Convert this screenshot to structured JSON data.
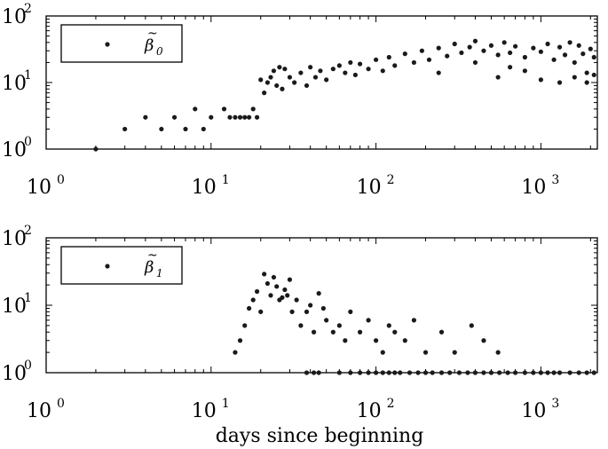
{
  "chart_data": [
    {
      "type": "scatter",
      "xscale": "log",
      "yscale": "log",
      "xlim": [
        1,
        2200
      ],
      "ylim": [
        1,
        100
      ],
      "xlabel": "",
      "x_ticks": [
        {
          "base": "10",
          "exp": "0"
        },
        {
          "base": "10",
          "exp": "1"
        },
        {
          "base": "10",
          "exp": "2"
        },
        {
          "base": "10",
          "exp": "3"
        }
      ],
      "y_ticks": [
        {
          "base": "10",
          "exp": "0"
        },
        {
          "base": "10",
          "exp": "1"
        },
        {
          "base": "10",
          "exp": "2"
        }
      ],
      "legend": {
        "position": "top-left",
        "symbol": "β",
        "subscript": "0"
      },
      "marker_color": "#1a1a1a",
      "series": [
        {
          "name": "β̃0",
          "points": [
            [
              2,
              1
            ],
            [
              3,
              2
            ],
            [
              4,
              3
            ],
            [
              5,
              2
            ],
            [
              6,
              3
            ],
            [
              7,
              2
            ],
            [
              8,
              4
            ],
            [
              9,
              2
            ],
            [
              10,
              3
            ],
            [
              12,
              4
            ],
            [
              13,
              3
            ],
            [
              14,
              3
            ],
            [
              15,
              3
            ],
            [
              16,
              3
            ],
            [
              17,
              3
            ],
            [
              18,
              4
            ],
            [
              19,
              3
            ],
            [
              20,
              11
            ],
            [
              21,
              7
            ],
            [
              22,
              10
            ],
            [
              23,
              12
            ],
            [
              24,
              15
            ],
            [
              25,
              9
            ],
            [
              26,
              17
            ],
            [
              27,
              8
            ],
            [
              28,
              16
            ],
            [
              30,
              12
            ],
            [
              32,
              10
            ],
            [
              35,
              14
            ],
            [
              38,
              9
            ],
            [
              40,
              17
            ],
            [
              43,
              12
            ],
            [
              46,
              15
            ],
            [
              50,
              11
            ],
            [
              55,
              16
            ],
            [
              60,
              18
            ],
            [
              65,
              14
            ],
            [
              70,
              20
            ],
            [
              75,
              13
            ],
            [
              80,
              19
            ],
            [
              90,
              16
            ],
            [
              100,
              22
            ],
            [
              110,
              15
            ],
            [
              120,
              24
            ],
            [
              130,
              18
            ],
            [
              150,
              27
            ],
            [
              170,
              20
            ],
            [
              190,
              30
            ],
            [
              210,
              22
            ],
            [
              240,
              33
            ],
            [
              270,
              25
            ],
            [
              300,
              38
            ],
            [
              330,
              28
            ],
            [
              370,
              34
            ],
            [
              400,
              42
            ],
            [
              450,
              30
            ],
            [
              500,
              36
            ],
            [
              550,
              26
            ],
            [
              600,
              40
            ],
            [
              650,
              28
            ],
            [
              700,
              35
            ],
            [
              800,
              24
            ],
            [
              900,
              33
            ],
            [
              1000,
              29
            ],
            [
              1100,
              38
            ],
            [
              1200,
              22
            ],
            [
              1300,
              34
            ],
            [
              1400,
              26
            ],
            [
              1500,
              40
            ],
            [
              1600,
              20
            ],
            [
              1700,
              36
            ],
            [
              1800,
              27
            ],
            [
              1900,
              14
            ],
            [
              2000,
              32
            ],
            [
              2100,
              24
            ],
            [
              550,
              12
            ],
            [
              800,
              15
            ],
            [
              1000,
              11
            ],
            [
              1300,
              10
            ],
            [
              1600,
              12
            ],
            [
              1900,
              10
            ],
            [
              2100,
              13
            ],
            [
              240,
              14
            ],
            [
              400,
              20
            ],
            [
              650,
              17
            ]
          ]
        }
      ]
    },
    {
      "type": "scatter",
      "xscale": "log",
      "yscale": "log",
      "xlim": [
        1,
        2200
      ],
      "ylim": [
        1,
        100
      ],
      "xlabel": "days since beginning",
      "x_ticks": [
        {
          "base": "10",
          "exp": "0"
        },
        {
          "base": "10",
          "exp": "1"
        },
        {
          "base": "10",
          "exp": "2"
        },
        {
          "base": "10",
          "exp": "3"
        }
      ],
      "y_ticks": [
        {
          "base": "10",
          "exp": "0"
        },
        {
          "base": "10",
          "exp": "1"
        },
        {
          "base": "10",
          "exp": "2"
        }
      ],
      "legend": {
        "position": "top-left",
        "symbol": "β",
        "subscript": "1"
      },
      "marker_color": "#1a1a1a",
      "series": [
        {
          "name": "β̃1",
          "points": [
            [
              14,
              2
            ],
            [
              15,
              3
            ],
            [
              16,
              5
            ],
            [
              17,
              9
            ],
            [
              18,
              12
            ],
            [
              19,
              16
            ],
            [
              20,
              8
            ],
            [
              21,
              29
            ],
            [
              22,
              21
            ],
            [
              23,
              14
            ],
            [
              24,
              26
            ],
            [
              25,
              19
            ],
            [
              26,
              12
            ],
            [
              27,
              13
            ],
            [
              28,
              17
            ],
            [
              29,
              14
            ],
            [
              30,
              24
            ],
            [
              31,
              8
            ],
            [
              33,
              12
            ],
            [
              35,
              5
            ],
            [
              38,
              8
            ],
            [
              40,
              10
            ],
            [
              42,
              4
            ],
            [
              45,
              15
            ],
            [
              48,
              9
            ],
            [
              50,
              6
            ],
            [
              55,
              4
            ],
            [
              60,
              5
            ],
            [
              65,
              3
            ],
            [
              70,
              8
            ],
            [
              80,
              4
            ],
            [
              90,
              6
            ],
            [
              100,
              3
            ],
            [
              110,
              2
            ],
            [
              120,
              5
            ],
            [
              130,
              4
            ],
            [
              150,
              3
            ],
            [
              170,
              6
            ],
            [
              200,
              2
            ],
            [
              250,
              4
            ],
            [
              300,
              2
            ],
            [
              380,
              5
            ],
            [
              450,
              3
            ],
            [
              550,
              2
            ],
            [
              38,
              1
            ],
            [
              42,
              1
            ],
            [
              45,
              1
            ],
            [
              60,
              1
            ],
            [
              70,
              1
            ],
            [
              80,
              1
            ],
            [
              90,
              1
            ],
            [
              100,
              1
            ],
            [
              110,
              1
            ],
            [
              120,
              1
            ],
            [
              130,
              1
            ],
            [
              140,
              1
            ],
            [
              160,
              1
            ],
            [
              180,
              1
            ],
            [
              200,
              1
            ],
            [
              220,
              1
            ],
            [
              250,
              1
            ],
            [
              280,
              1
            ],
            [
              320,
              1
            ],
            [
              360,
              1
            ],
            [
              400,
              1
            ],
            [
              450,
              1
            ],
            [
              500,
              1
            ],
            [
              560,
              1
            ],
            [
              630,
              1
            ],
            [
              700,
              1
            ],
            [
              800,
              1
            ],
            [
              900,
              1
            ],
            [
              1000,
              1
            ],
            [
              1100,
              1
            ],
            [
              1200,
              1
            ],
            [
              1300,
              1
            ],
            [
              1500,
              1
            ],
            [
              1700,
              1
            ],
            [
              1900,
              1
            ],
            [
              2100,
              1
            ]
          ]
        }
      ]
    }
  ]
}
